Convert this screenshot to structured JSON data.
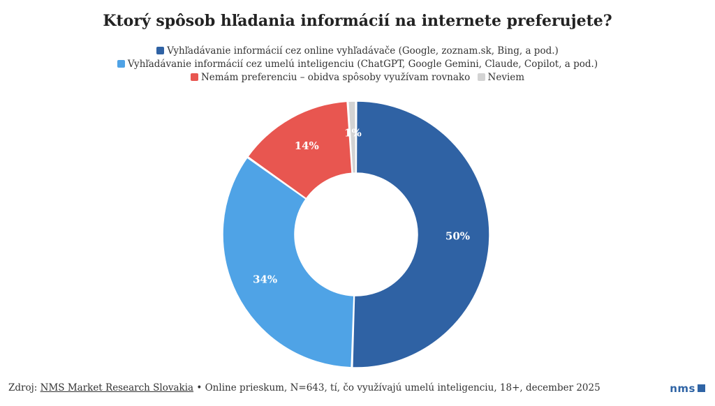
{
  "chart_data": {
    "type": "pie",
    "title": "Ktorý spôsob hľadania informácií na internete preferujete?",
    "donut": true,
    "legend_position": "top",
    "slices": [
      {
        "name": "Vyhľadávanie informácií cez online vyhľadávače (Google, zoznam.sk, Bing, a pod.)",
        "value": 50,
        "label": "50%",
        "color": "#2f62a4"
      },
      {
        "name": "Vyhľadávanie informácií cez umelú inteligenciu (ChatGPT, Google Gemini, Claude, Copilot, a pod.)",
        "value": 34,
        "label": "34%",
        "color": "#4fa3e6"
      },
      {
        "name": "Nemám preferenciu – obidva spôsoby využívam rovnako",
        "value": 14,
        "label": "14%",
        "color": "#e85650"
      },
      {
        "name": "Neviem",
        "value": 1,
        "label": "1%",
        "color": "#d3d3d3"
      }
    ]
  },
  "footer": {
    "prefix": "Zdroj: ",
    "source_link": "NMS Market Research Slovakia",
    "rest": " • Online prieskum, N=643, tí, čo využívajú umelú inteligenciu, 18+, december 2025"
  },
  "logo": {
    "text": "nms"
  }
}
